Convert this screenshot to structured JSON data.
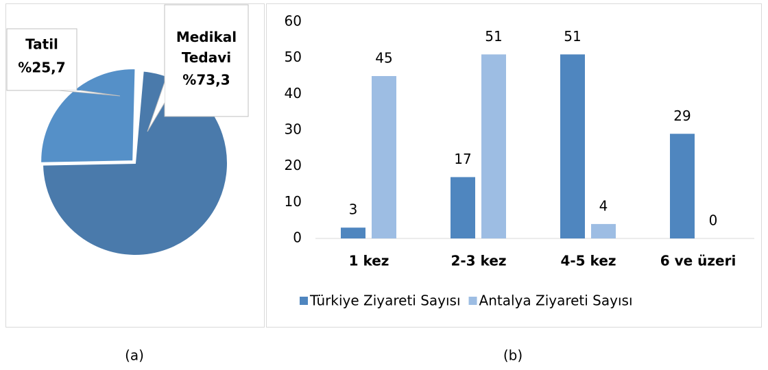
{
  "chart_data": [
    {
      "type": "pie",
      "caption": "(a)",
      "categories": [
        "Tatil",
        "Medikal Tedavi"
      ],
      "values": [
        25.7,
        73.3
      ],
      "value_labels": [
        "%25,7",
        "%73,3"
      ],
      "colors": [
        "#5590c8",
        "#4a7aab"
      ]
    },
    {
      "type": "bar",
      "caption": "(b)",
      "categories": [
        "1 kez",
        "2-3 kez",
        "4-5 kez",
        "6 ve üzeri"
      ],
      "series": [
        {
          "name": "Türkiye Ziyareti Sayısı",
          "color": "#4f86bf",
          "values": [
            3,
            17,
            51,
            29
          ]
        },
        {
          "name": "Antalya Ziyareti Sayısı",
          "color": "#9dbde3",
          "values": [
            45,
            51,
            4,
            0
          ]
        }
      ],
      "ylim": [
        0,
        60
      ],
      "yticks": [
        0,
        10,
        20,
        30,
        40,
        50,
        60
      ],
      "legend": "bottom"
    }
  ]
}
